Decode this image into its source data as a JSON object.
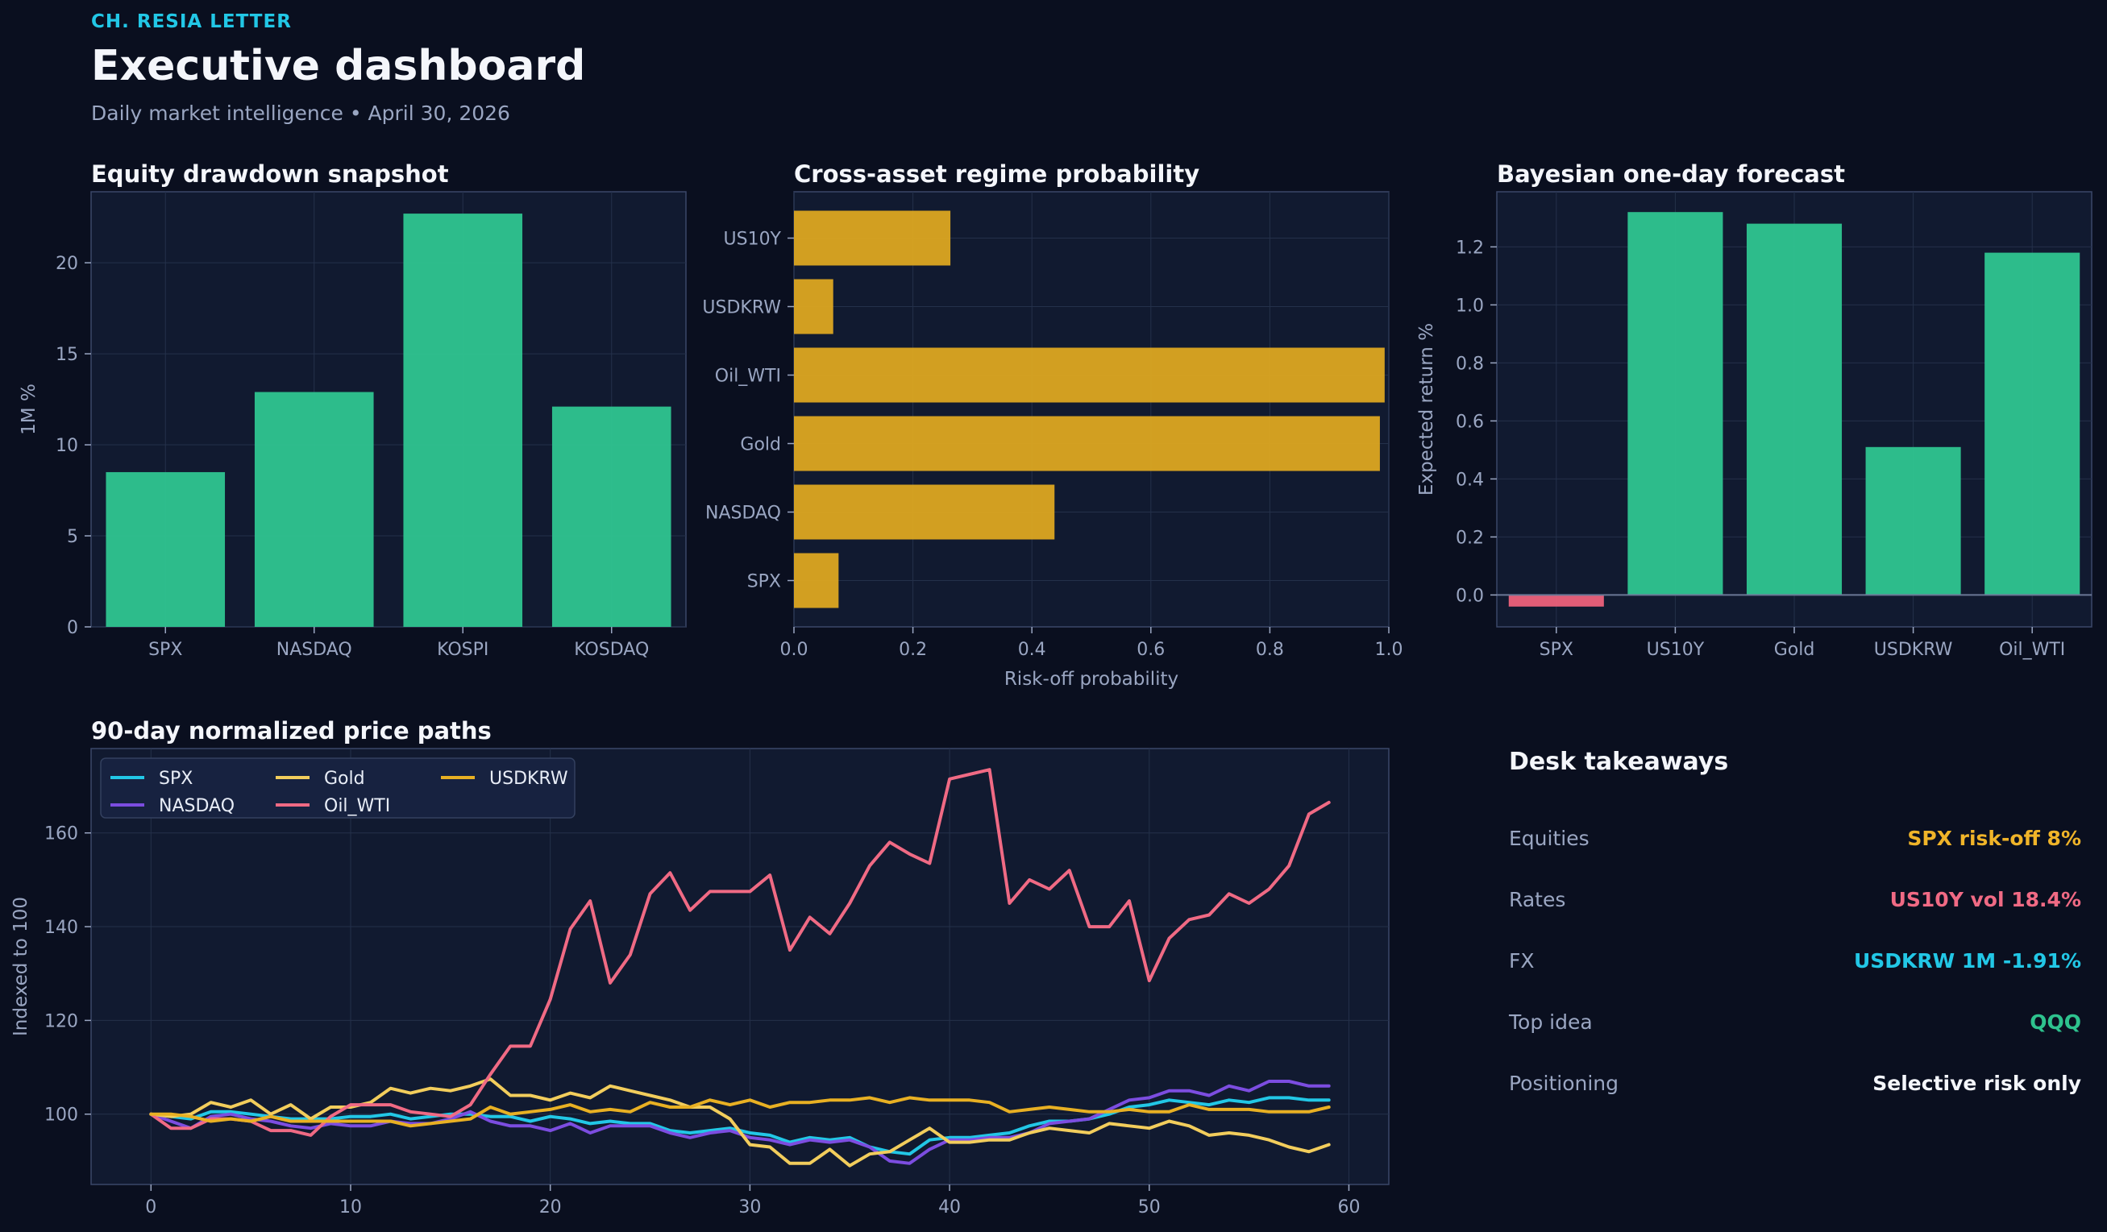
{
  "header": {
    "brand": "CH. RESIA LETTER",
    "title": "Executive dashboard",
    "subtitle": "Daily market intelligence • April 30, 2026"
  },
  "colors": {
    "bg": "#0a0f1f",
    "panel": "#111a30",
    "grid": "#24304a",
    "axis": "#3a4768",
    "tick": "#9aa6c2",
    "green": "#2ec28e",
    "amber": "#d9a421",
    "red": "#e8607a"
  },
  "chart_data": [
    {
      "id": "drawdown",
      "type": "bar",
      "title": "Equity drawdown snapshot",
      "xlabel": "",
      "ylabel": "1M %",
      "categories": [
        "SPX",
        "NASDAQ",
        "KOSPI",
        "KOSDAQ"
      ],
      "values": [
        8.5,
        12.9,
        22.7,
        12.1
      ],
      "ylim": [
        0,
        23.9
      ],
      "yticks": [
        0,
        5,
        10,
        15,
        20
      ],
      "grid": true
    },
    {
      "id": "regime",
      "type": "bar",
      "orientation": "horizontal",
      "title": "Cross-asset regime probability",
      "xlabel": "Risk-off probability",
      "ylabel": "",
      "categories": [
        "SPX",
        "NASDAQ",
        "Gold",
        "Oil_WTI",
        "USDKRW",
        "US10Y"
      ],
      "values": [
        0.075,
        0.438,
        0.985,
        0.993,
        0.066,
        0.263
      ],
      "xlim": [
        0,
        1.0
      ],
      "xticks": [
        0.0,
        0.2,
        0.4,
        0.6,
        0.8,
        1.0
      ],
      "grid": true
    },
    {
      "id": "forecast",
      "type": "bar",
      "title": "Bayesian one-day forecast",
      "xlabel": "",
      "ylabel": "Expected return %",
      "categories": [
        "SPX",
        "US10Y",
        "Gold",
        "USDKRW",
        "Oil_WTI"
      ],
      "values": [
        -0.04,
        1.32,
        1.28,
        0.51,
        1.18
      ],
      "ylim": [
        -0.11,
        1.39
      ],
      "yticks": [
        0.0,
        0.2,
        0.4,
        0.6,
        0.8,
        1.0,
        1.2
      ],
      "grid": true
    },
    {
      "id": "paths",
      "type": "line",
      "title": "90-day normalized price paths",
      "xlabel": "",
      "ylabel": "Indexed to 100",
      "xlim": [
        -3,
        62
      ],
      "ylim": [
        85,
        178
      ],
      "xticks": [
        0,
        10,
        20,
        30,
        40,
        50,
        60
      ],
      "yticks": [
        100,
        120,
        140,
        160
      ],
      "legend": "top-left",
      "grid": true,
      "series": [
        {
          "name": "SPX",
          "color": "#22c7e6",
          "values": [
            100,
            99.5,
            99,
            100.5,
            100.5,
            100,
            99.5,
            99,
            99,
            99,
            99.5,
            99.5,
            100,
            99,
            99.5,
            100,
            100,
            99.5,
            99.5,
            98.5,
            99.5,
            99,
            98,
            98.5,
            98,
            98,
            96.5,
            96,
            96.5,
            97,
            96,
            95.5,
            94,
            95,
            94.5,
            95,
            93,
            92,
            91.5,
            94.5,
            95,
            95,
            95.5,
            96,
            97.5,
            98.5,
            98.5,
            99,
            100,
            101.5,
            102,
            103,
            102.5,
            102,
            103,
            102.5,
            103.5,
            103.5,
            103,
            103
          ]
        },
        {
          "name": "NASDAQ",
          "color": "#7c4de0",
          "values": [
            100,
            98.5,
            97,
            99.5,
            100,
            99,
            98.5,
            97.5,
            97,
            98,
            97.5,
            97.5,
            98.5,
            98,
            98,
            99,
            100.5,
            98.5,
            97.5,
            97.5,
            96.5,
            98,
            96,
            97.5,
            97.5,
            97.5,
            96,
            95,
            96,
            96.5,
            95,
            94.5,
            93.5,
            94.5,
            94,
            94.5,
            93,
            90,
            89.5,
            92.5,
            94.5,
            94.5,
            95,
            95,
            96,
            98,
            98.5,
            99,
            101,
            103,
            103.5,
            105,
            105,
            104,
            106,
            105,
            107,
            107,
            106,
            106
          ]
        },
        {
          "name": "Gold",
          "color": "#f2cd5c",
          "values": [
            100,
            99.5,
            100,
            102.5,
            101.5,
            103,
            100,
            102,
            99,
            101.5,
            101.5,
            102.5,
            105.5,
            104.5,
            105.5,
            105,
            106,
            107.5,
            104,
            104,
            103,
            104.5,
            103.5,
            106,
            105,
            104,
            103,
            101.5,
            101.5,
            99,
            93.5,
            93,
            89.5,
            89.5,
            92.5,
            89,
            91.5,
            92,
            94.5,
            97,
            94,
            94,
            94.5,
            94.5,
            96,
            97,
            96.5,
            96,
            98,
            97.5,
            97,
            98.5,
            97.5,
            95.5,
            96,
            95.5,
            94.5,
            93,
            92,
            93.5
          ]
        },
        {
          "name": "Oil_WTI",
          "color": "#f06a84",
          "values": [
            100,
            97,
            97,
            99,
            99,
            98.5,
            96.5,
            96.5,
            95.5,
            99.5,
            102,
            102,
            102,
            100.5,
            100,
            99.5,
            102,
            108.5,
            114.5,
            114.5,
            124.5,
            139.5,
            145.5,
            128,
            134,
            147,
            151.5,
            143.5,
            147.5,
            147.5,
            147.5,
            151,
            135,
            142,
            138.5,
            145,
            153,
            158,
            155.5,
            153.5,
            171.5,
            172.5,
            173.5,
            145,
            150,
            148,
            152,
            140,
            140,
            145.5,
            128.5,
            137.5,
            141.5,
            142.5,
            147,
            145,
            148,
            153,
            164,
            166.5
          ]
        },
        {
          "name": "USDKRW",
          "color": "#e8b023",
          "values": [
            100,
            100,
            99.5,
            98.5,
            99,
            98.5,
            99.5,
            98.5,
            98.5,
            98.5,
            98.5,
            98.5,
            98.5,
            97.5,
            98,
            98.5,
            99,
            101.5,
            100,
            100.5,
            101,
            102,
            100.5,
            101,
            100.5,
            102.5,
            101.5,
            101.5,
            103,
            102,
            103,
            101.5,
            102.5,
            102.5,
            103,
            103,
            103.5,
            102.5,
            103.5,
            103,
            103,
            103,
            102.5,
            100.5,
            101,
            101.5,
            101,
            100.5,
            100.5,
            101,
            100.5,
            100.5,
            102,
            101,
            101,
            101,
            100.5,
            100.5,
            100.5,
            101.5
          ]
        }
      ]
    }
  ],
  "takeaways": {
    "title": "Desk takeaways",
    "rows": [
      {
        "label": "Equities",
        "value": "SPX risk-off 8%",
        "color": "#f0b429"
      },
      {
        "label": "Rates",
        "value": "US10Y vol 18.4%",
        "color": "#f06a84"
      },
      {
        "label": "FX",
        "value": "USDKRW 1M -1.91%",
        "color": "#22c7e6"
      },
      {
        "label": "Top idea",
        "value": "QQQ",
        "color": "#2ec28e"
      },
      {
        "label": "Positioning",
        "value": "Selective risk only",
        "color": "#f4f6fb"
      }
    ]
  }
}
